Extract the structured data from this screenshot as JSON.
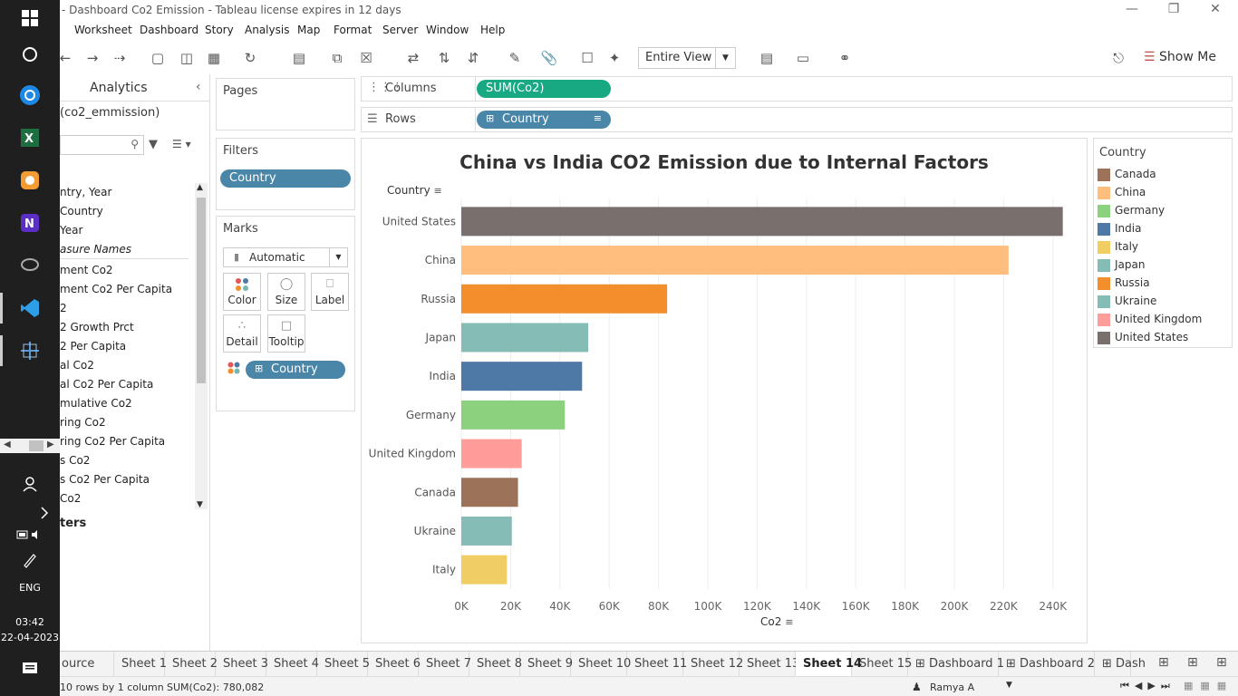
{
  "window": {
    "title": "- Dashboard  Co2 Emission - Tableau license expires in 12 days"
  },
  "menu": [
    "Worksheet",
    "Dashboard",
    "Story",
    "Analysis",
    "Map",
    "Format",
    "Server",
    "Window",
    "Help"
  ],
  "toolbar": {
    "view_mode": "Entire View",
    "show_me": "Show Me"
  },
  "data_pane": {
    "tab_label": "Analytics",
    "datasource": "(co2_emmission)",
    "fields": [
      "ntry, Year",
      "Country",
      "Year",
      "asure Names",
      "ment Co2",
      "ment Co2 Per Capita",
      "2",
      "2 Growth Prct",
      "2 Per Capita",
      "al Co2",
      "al Co2 Per Capita",
      "mulative Co2",
      "ring Co2",
      "ring Co2 Per Capita",
      "s Co2",
      "s Co2 Per Capita",
      "Co2"
    ],
    "params_header": "ters"
  },
  "pages": {
    "label": "Pages"
  },
  "filters": {
    "label": "Filters",
    "pill": "Country"
  },
  "marks": {
    "label": "Marks",
    "type": "Automatic",
    "buttons": [
      "Color",
      "Size",
      "Label",
      "Detail",
      "Tooltip"
    ],
    "pill": "Country"
  },
  "shelves": {
    "columns_label": "Columns",
    "columns_pill": "SUM(Co2)",
    "rows_label": "Rows",
    "rows_pill": "Country"
  },
  "colors": {
    "Canada": "#9c7259",
    "China": "#ffbe7d",
    "Germany": "#8cd17d",
    "India": "#4e79a7",
    "Italy": "#f1ce63",
    "Japan": "#86bcb6",
    "Russia": "#f28e2b",
    "Ukraine": "#86bcb6",
    "United Kingdom": "#ff9d9a",
    "United States": "#79706e"
  },
  "chart_data": {
    "type": "bar",
    "orientation": "horizontal",
    "title": "China vs India CO2 Emission due to Internal Factors",
    "row_header": "Country",
    "xlabel": "Co2",
    "xlim": [
      0,
      250000
    ],
    "ticks": [
      "0K",
      "20K",
      "40K",
      "60K",
      "80K",
      "100K",
      "120K",
      "140K",
      "160K",
      "180K",
      "200K",
      "220K",
      "240K"
    ],
    "categories": [
      "United States",
      "China",
      "Russia",
      "Japan",
      "India",
      "Germany",
      "United Kingdom",
      "Canada",
      "Ukraine",
      "Italy"
    ],
    "values": [
      244000,
      222000,
      83500,
      51500,
      49000,
      42000,
      24500,
      23000,
      20500,
      18500
    ]
  },
  "legend": {
    "title": "Country",
    "items": [
      "Canada",
      "China",
      "Germany",
      "India",
      "Italy",
      "Japan",
      "Russia",
      "Ukraine",
      "United Kingdom",
      "United States"
    ]
  },
  "tabs": [
    "ource",
    "Sheet 1",
    "Sheet 2",
    "Sheet 3",
    "Sheet 4",
    "Sheet 5",
    "Sheet 6",
    "Sheet 7",
    "Sheet 8",
    "Sheet 9",
    "Sheet 10",
    "Sheet 11",
    "Sheet 12",
    "Sheet 13",
    "Sheet 14",
    "Sheet 15",
    "Dashboard 1",
    "Dashboard 2",
    "Dash"
  ],
  "active_tab": "Sheet 14",
  "status": {
    "rows": "10 rows by 1 column",
    "sum": "SUM(Co2): 780,082",
    "user": "Ramya A"
  },
  "taskbar": {
    "lang": "ENG",
    "time": "03:42",
    "date": "22-04-2023"
  }
}
